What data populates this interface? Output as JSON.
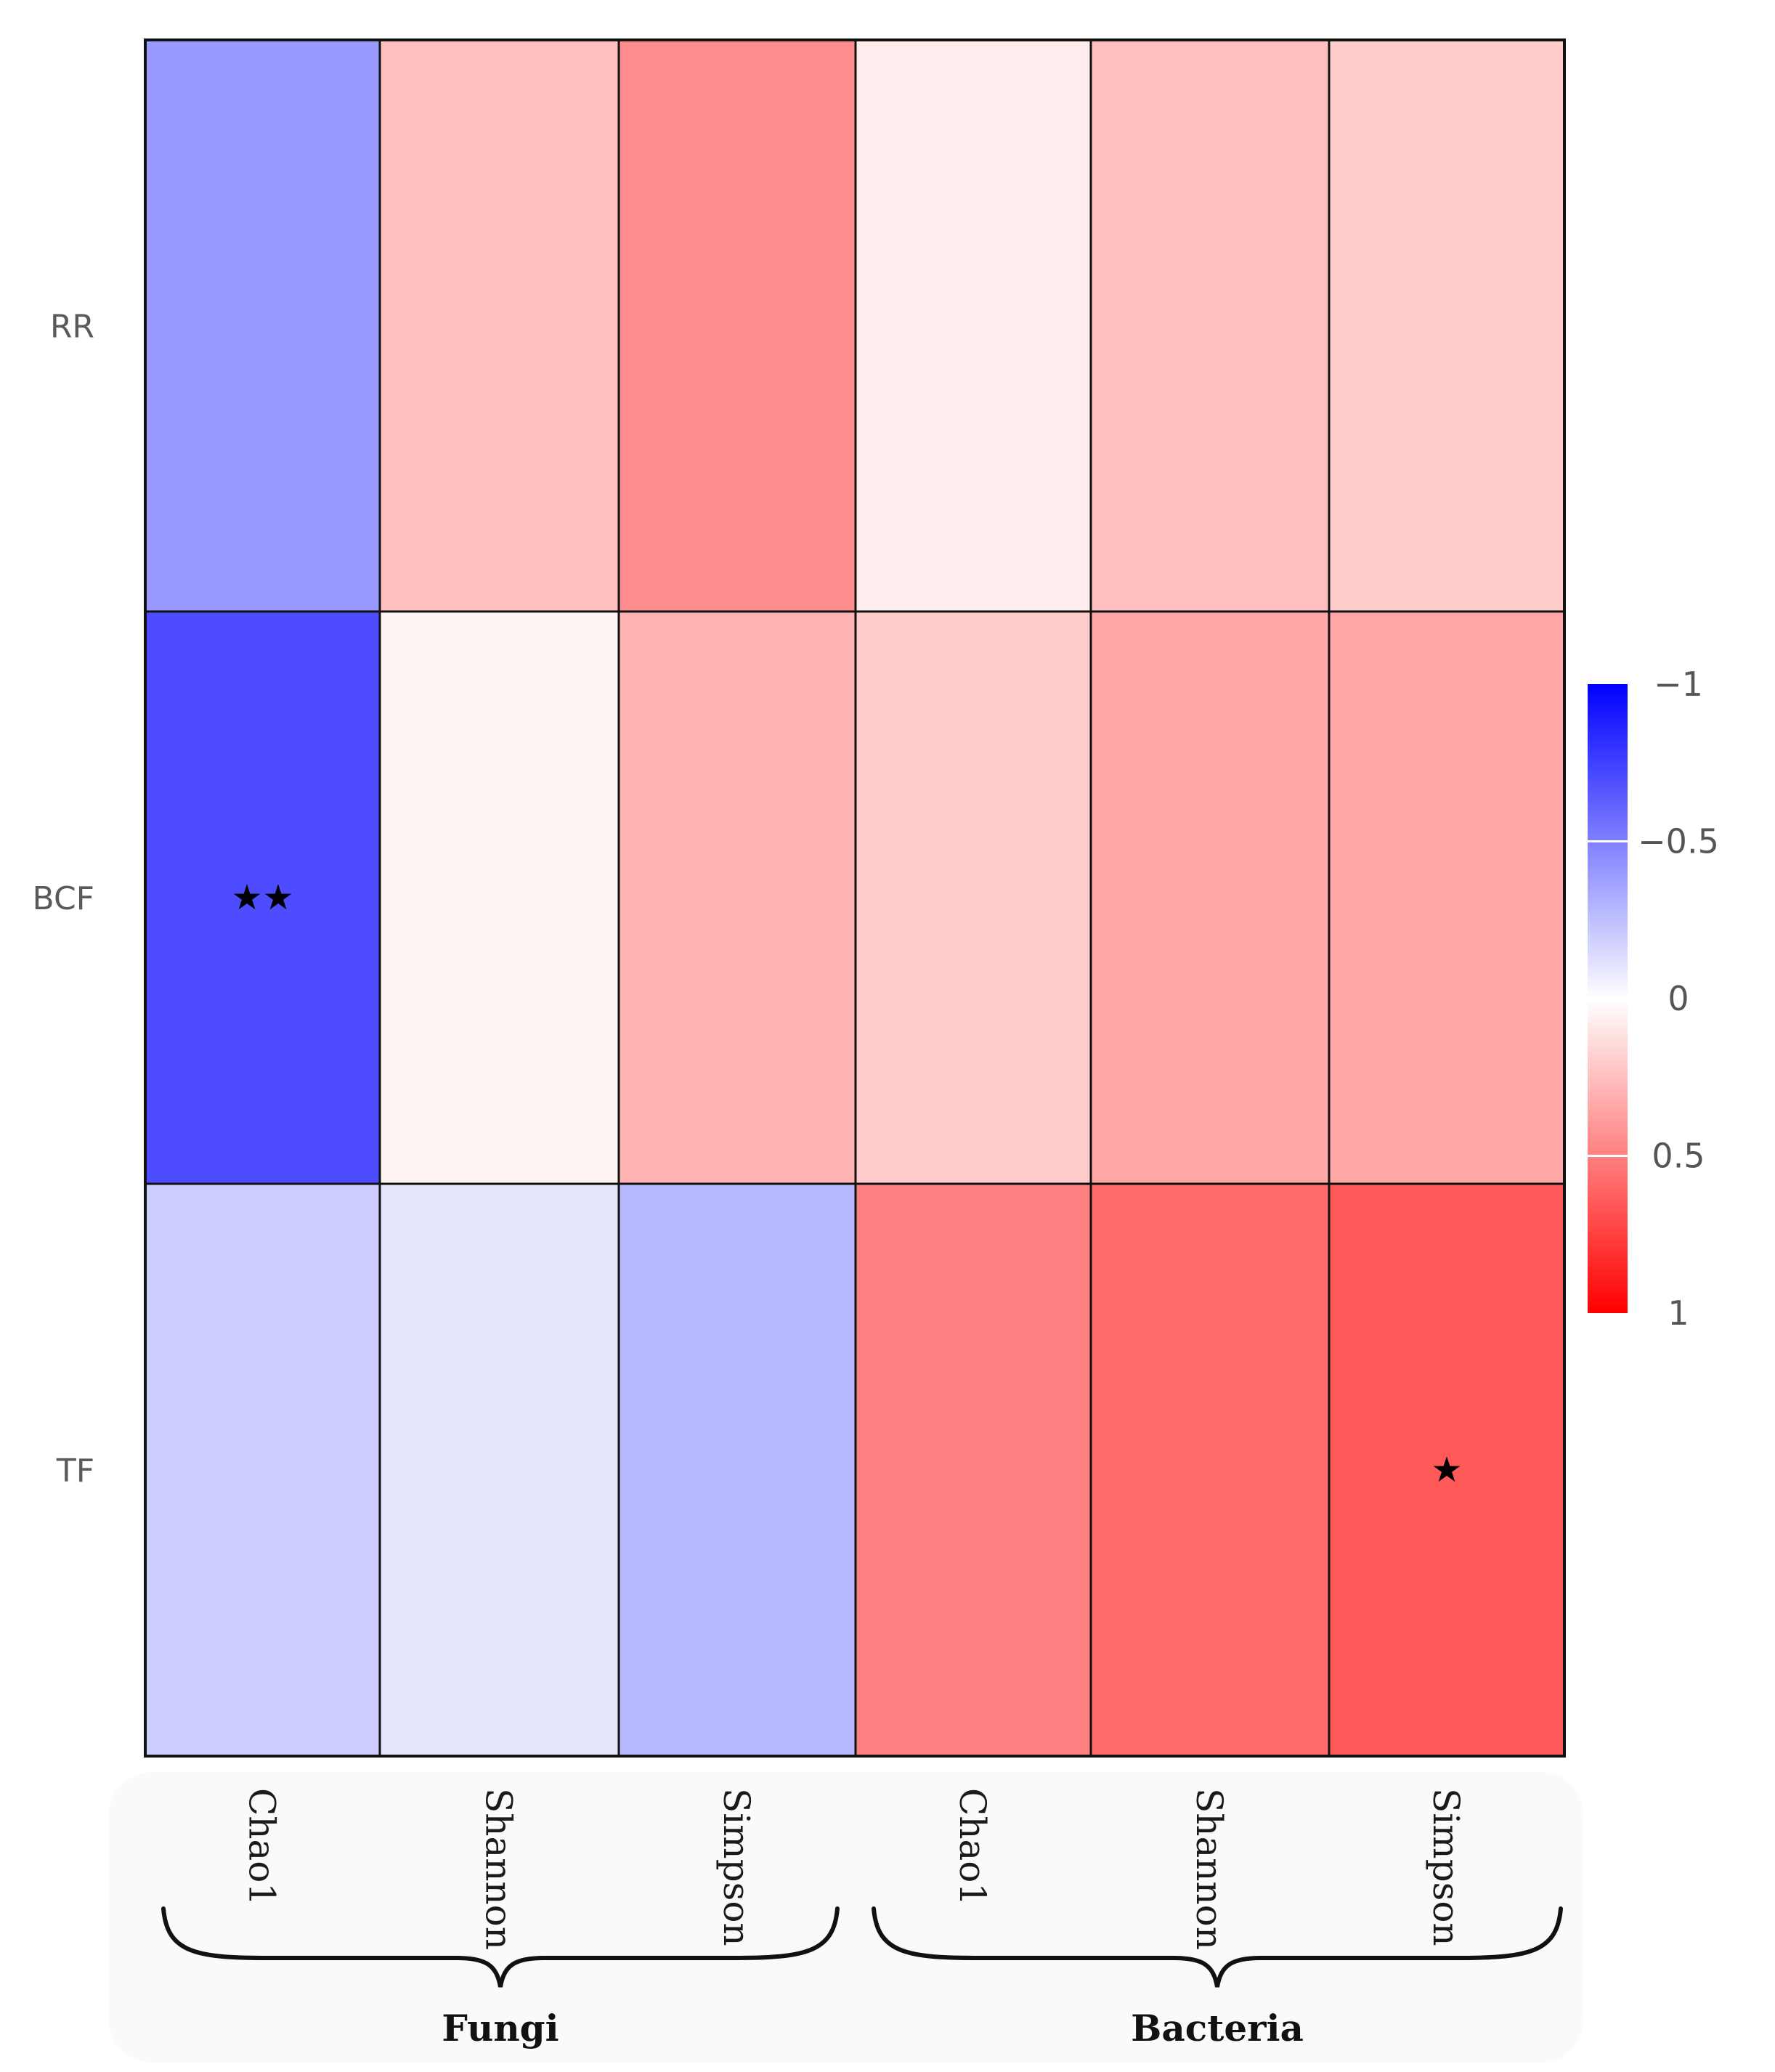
{
  "chart_data": {
    "type": "heatmap",
    "title": "",
    "rows": [
      "RR",
      "BCF",
      "TF"
    ],
    "columns": [
      "Chao1",
      "Shannon",
      "Simpson",
      "Chao1",
      "Shannon",
      "Simpson"
    ],
    "column_groups": [
      {
        "name": "Fungi",
        "columns": [
          0,
          1,
          2
        ]
      },
      {
        "name": "Bacteria",
        "columns": [
          3,
          4,
          5
        ]
      }
    ],
    "values": [
      [
        -0.4,
        0.25,
        0.45,
        0.07,
        0.25,
        0.2
      ],
      [
        -0.7,
        0.04,
        0.3,
        0.2,
        0.35,
        0.35
      ],
      [
        -0.2,
        -0.1,
        -0.28,
        0.5,
        0.58,
        0.65
      ]
    ],
    "significance": [
      [
        "",
        "",
        "",
        "",
        "",
        ""
      ],
      [
        "★★",
        "",
        "",
        "",
        "",
        ""
      ],
      [
        "",
        "",
        "",
        "",
        "",
        "★"
      ]
    ],
    "colorbar": {
      "range": [
        -1,
        1
      ],
      "ticks": [
        -1,
        -0.5,
        0,
        0.5,
        1
      ],
      "tick_labels": [
        "−1",
        "−0.5",
        "0",
        "0.5",
        "1"
      ],
      "reversed": true,
      "low_color": "#0000ff",
      "mid_color": "#ffffff",
      "high_color": "#ff0000"
    }
  }
}
